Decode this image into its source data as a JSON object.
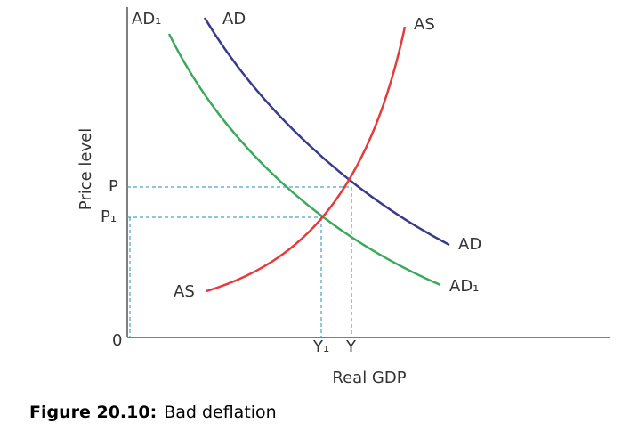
{
  "diagram": {
    "curve_labels": {
      "ad1_top": "AD₁",
      "ad_top": "AD",
      "as_top": "AS",
      "ad_right": "AD",
      "ad1_right": "AD₁",
      "as_left": "AS"
    },
    "y_axis": {
      "title": "Price level",
      "labels": [
        "P",
        "P₁",
        "0"
      ]
    },
    "x_axis": {
      "title": "Real GDP",
      "labels": [
        "Y₁",
        "Y"
      ]
    }
  },
  "caption": {
    "label": "Figure 20.10:",
    "text": "Bad deflation"
  }
}
